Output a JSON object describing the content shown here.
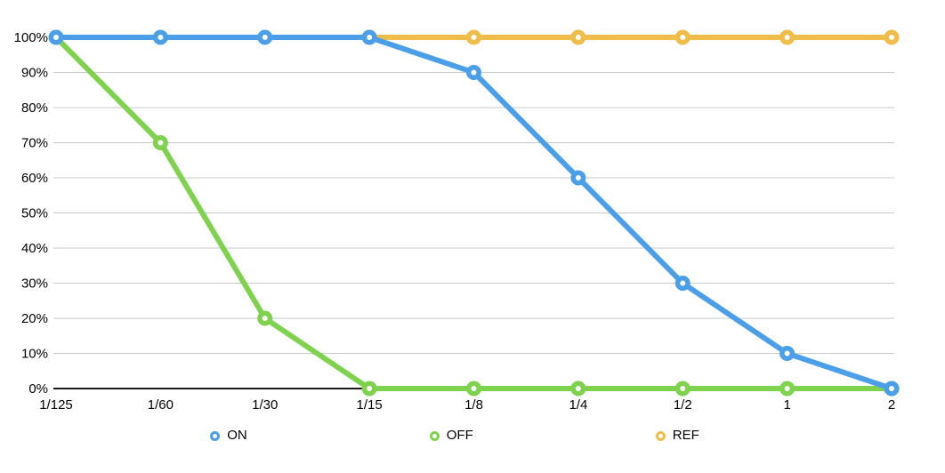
{
  "chart_data": {
    "type": "line",
    "title": "",
    "xlabel": "",
    "ylabel": "",
    "categories": [
      "1/125",
      "1/60",
      "1/30",
      "1/15",
      "1/8",
      "1/4",
      "1/2",
      "1",
      "2"
    ],
    "series": [
      {
        "name": "ON",
        "color": "#4B9FE9",
        "values": [
          100,
          100,
          100,
          100,
          90,
          60,
          30,
          10,
          0
        ]
      },
      {
        "name": "OFF",
        "color": "#7ED24E",
        "values": [
          100,
          70,
          20,
          0,
          0,
          0,
          0,
          0,
          0
        ]
      },
      {
        "name": "REF",
        "color": "#F0BD4B",
        "values": [
          null,
          null,
          null,
          100,
          100,
          100,
          100,
          100,
          100
        ]
      }
    ],
    "z_order": [
      2,
      1,
      0
    ],
    "ylim": [
      0,
      100
    ],
    "ytick_step": 10,
    "ytick_labels": [
      "0%",
      "10%",
      "20%",
      "30%",
      "40%",
      "50%",
      "60%",
      "70%",
      "80%",
      "90%",
      "100%"
    ],
    "grid": true,
    "legend_position": "bottom"
  },
  "style": {
    "background": "#FFFFFF",
    "gridline_color": "#C9C9C9",
    "axis_color": "#1A1A1A",
    "text_color": "#000000",
    "line_width": 6,
    "marker_radius": 5.75,
    "marker_stroke": 5.5
  }
}
